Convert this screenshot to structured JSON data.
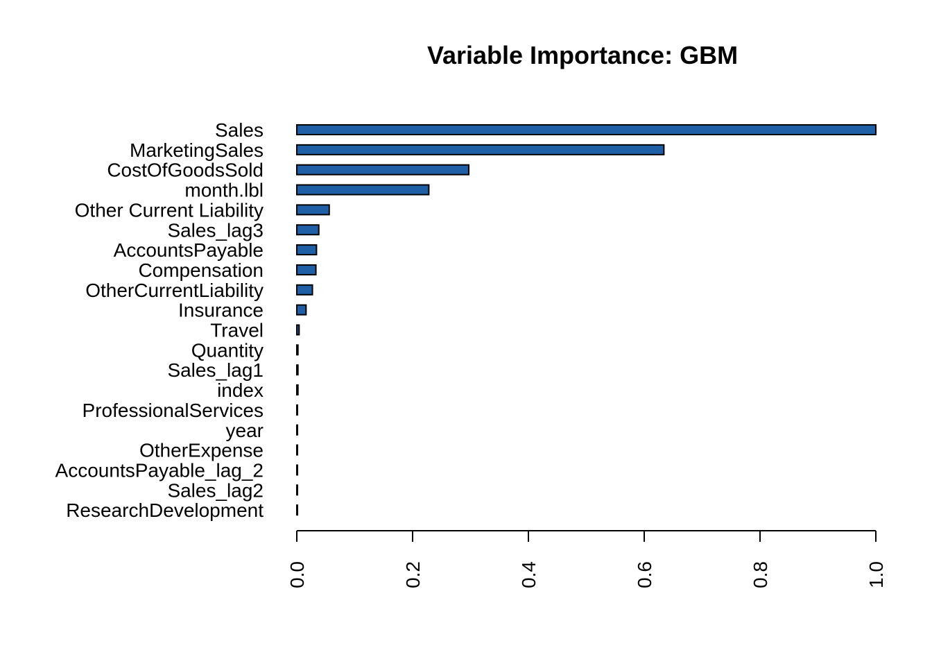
{
  "chart_data": {
    "type": "bar",
    "orientation": "horizontal",
    "title": "Variable Importance: GBM",
    "xlabel": "",
    "ylabel": "",
    "xlim": [
      0,
      1
    ],
    "grid": false,
    "legend": "none",
    "bar_color": "#1F5FA6",
    "bar_edge_color": "#000000",
    "x_ticks": [
      "0.0",
      "0.2",
      "0.4",
      "0.6",
      "0.8",
      "1.0"
    ],
    "categories": [
      "Sales",
      "MarketingSales",
      "CostOfGoodsSold",
      "month.lbl",
      "Other Current Liability",
      "Sales_lag3",
      "AccountsPayable",
      "Compensation",
      "OtherCurrentLiability",
      "Insurance",
      "Travel",
      "Quantity",
      "Sales_lag1",
      "index",
      "ProfessionalServices",
      "year",
      "OtherExpense",
      "AccountsPayable_lag_2",
      "Sales_lag2",
      "ResearchDevelopment"
    ],
    "values": [
      1.0,
      0.634,
      0.297,
      0.228,
      0.056,
      0.038,
      0.034,
      0.033,
      0.027,
      0.016,
      0.004,
      0.002,
      0.002,
      0.002,
      0.001,
      0.001,
      0.001,
      0.001,
      0.001,
      0.001
    ]
  }
}
